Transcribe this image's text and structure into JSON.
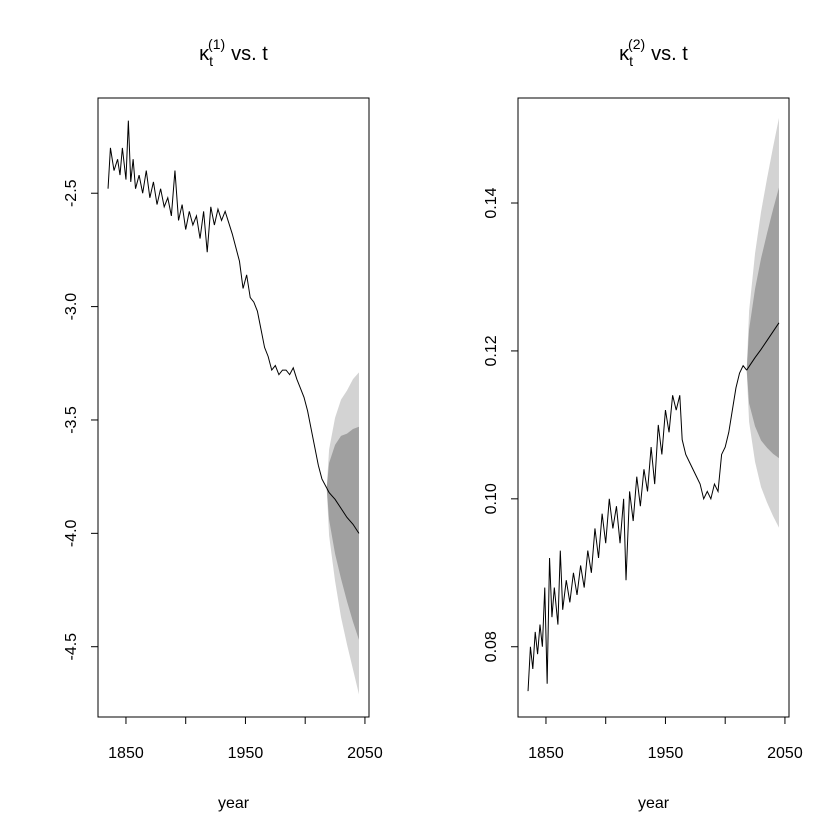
{
  "chart_data": [
    {
      "type": "line",
      "title": {
        "symbol": "κ",
        "sub": "t",
        "sup": "(1)",
        "rest": "vs. t"
      },
      "xlabel": "year",
      "xlim": [
        1826.6,
        2053.4
      ],
      "ylim": [
        -4.81,
        -2.08
      ],
      "xticks": [
        1850,
        {
          "value": 1900,
          "label": null
        },
        1950,
        {
          "value": 2000,
          "label": null
        },
        2050
      ],
      "yticks": [
        -4.5,
        {
          "value": -4,
          "label": "-4.0"
        },
        -3.5,
        {
          "value": -3,
          "label": "-3.0"
        },
        -2.5
      ],
      "color": "#000000",
      "x": [
        1835,
        1837,
        1840,
        1843,
        1845,
        1847,
        1850,
        1852,
        1854,
        1856,
        1858,
        1861,
        1864,
        1867,
        1870,
        1873,
        1876,
        1879,
        1882,
        1885,
        1888,
        1891,
        1894,
        1897,
        1900,
        1903,
        1906,
        1909,
        1912,
        1915,
        1918,
        1921,
        1924,
        1927,
        1930,
        1933,
        1936,
        1939,
        1942,
        1945,
        1948,
        1951,
        1954,
        1957,
        1960,
        1963,
        1966,
        1969,
        1972,
        1975,
        1978,
        1981,
        1984,
        1987,
        1990,
        1993,
        1996,
        1999,
        2002,
        2005,
        2008,
        2011,
        2014,
        2018
      ],
      "values": [
        -2.48,
        -2.3,
        -2.4,
        -2.35,
        -2.42,
        -2.3,
        -2.44,
        -2.18,
        -2.45,
        -2.35,
        -2.48,
        -2.42,
        -2.5,
        -2.4,
        -2.52,
        -2.45,
        -2.55,
        -2.48,
        -2.56,
        -2.52,
        -2.6,
        -2.4,
        -2.62,
        -2.55,
        -2.66,
        -2.58,
        -2.64,
        -2.6,
        -2.7,
        -2.58,
        -2.76,
        -2.56,
        -2.64,
        -2.57,
        -2.62,
        -2.58,
        -2.63,
        -2.68,
        -2.74,
        -2.8,
        -2.92,
        -2.86,
        -2.96,
        -2.98,
        -3.02,
        -3.1,
        -3.18,
        -3.22,
        -3.28,
        -3.26,
        -3.3,
        -3.28,
        -3.28,
        -3.3,
        -3.27,
        -3.32,
        -3.36,
        -3.4,
        -3.46,
        -3.54,
        -3.62,
        -3.7,
        -3.76,
        -3.8
      ],
      "forecast": {
        "x": [
          2018,
          2020,
          2025,
          2030,
          2035,
          2040,
          2045
        ],
        "values": [
          -3.8,
          -3.82,
          -3.85,
          -3.89,
          -3.93,
          -3.96,
          -4.0
        ],
        "color": "#000000",
        "bands": [
          {
            "color": "#d3d3d3",
            "upper": [
              -3.8,
              -3.63,
              -3.49,
              -3.41,
              -3.37,
              -3.32,
              -3.29
            ],
            "lower": [
              -3.8,
              -4.01,
              -4.21,
              -4.37,
              -4.49,
              -4.6,
              -4.71
            ]
          },
          {
            "color": "#a0a0a0",
            "upper": [
              -3.8,
              -3.69,
              -3.61,
              -3.57,
              -3.56,
              -3.54,
              -3.53
            ],
            "lower": [
              -3.8,
              -3.94,
              -4.09,
              -4.2,
              -4.3,
              -4.39,
              -4.47
            ]
          }
        ]
      }
    },
    {
      "type": "line",
      "title": {
        "symbol": "κ",
        "sub": "t",
        "sup": "(2)",
        "rest": "vs. t"
      },
      "xlabel": "year",
      "xlim": [
        1826.6,
        2053.4
      ],
      "ylim": [
        0.0705,
        0.1542
      ],
      "xticks": [
        1850,
        {
          "value": 1900,
          "label": null
        },
        1950,
        {
          "value": 2000,
          "label": null
        },
        2050
      ],
      "yticks": [
        0.08,
        {
          "value": 0.1,
          "label": "0.10"
        },
        0.12,
        0.14
      ],
      "color": "#000000",
      "x": [
        1835,
        1837,
        1839,
        1841,
        1843,
        1845,
        1847,
        1849,
        1851,
        1853,
        1855,
        1857,
        1860,
        1862,
        1864,
        1867,
        1870,
        1873,
        1876,
        1879,
        1882,
        1885,
        1888,
        1891,
        1894,
        1897,
        1900,
        1903,
        1906,
        1909,
        1912,
        1915,
        1917,
        1920,
        1923,
        1926,
        1929,
        1932,
        1935,
        1938,
        1941,
        1944,
        1947,
        1950,
        1953,
        1956,
        1959,
        1962,
        1964,
        1967,
        1970,
        1973,
        1976,
        1979,
        1982,
        1985,
        1988,
        1991,
        1994,
        1997,
        2000,
        2003,
        2006,
        2009,
        2012,
        2015,
        2018
      ],
      "values": [
        0.074,
        0.08,
        0.077,
        0.082,
        0.079,
        0.083,
        0.08,
        0.088,
        0.075,
        0.092,
        0.084,
        0.088,
        0.083,
        0.093,
        0.085,
        0.089,
        0.086,
        0.09,
        0.087,
        0.091,
        0.088,
        0.093,
        0.09,
        0.096,
        0.092,
        0.098,
        0.094,
        0.1,
        0.096,
        0.099,
        0.094,
        0.1,
        0.089,
        0.101,
        0.097,
        0.103,
        0.099,
        0.104,
        0.101,
        0.107,
        0.102,
        0.11,
        0.106,
        0.112,
        0.109,
        0.114,
        0.112,
        0.114,
        0.108,
        0.106,
        0.105,
        0.104,
        0.103,
        0.102,
        0.1,
        0.101,
        0.1,
        0.102,
        0.101,
        0.106,
        0.107,
        0.109,
        0.112,
        0.115,
        0.117,
        0.118,
        0.1174
      ],
      "forecast": {
        "x": [
          2018,
          2020,
          2025,
          2030,
          2035,
          2040,
          2045
        ],
        "values": [
          0.1174,
          0.1179,
          0.1191,
          0.1202,
          0.1214,
          0.1226,
          0.1238
        ],
        "color": "#000000",
        "bands": [
          {
            "color": "#d3d3d3",
            "upper": [
              0.1174,
              0.1254,
              0.1332,
              0.1388,
              0.1433,
              0.1475,
              0.1515
            ],
            "lower": [
              0.1174,
              0.1104,
              0.105,
              0.1016,
              0.0995,
              0.0977,
              0.0961
            ]
          },
          {
            "color": "#a0a0a0",
            "upper": [
              0.1174,
              0.1229,
              0.1284,
              0.1325,
              0.1359,
              0.1391,
              0.1421
            ],
            "lower": [
              0.1174,
              0.1129,
              0.1098,
              0.1079,
              0.1069,
              0.1061,
              0.1055
            ]
          }
        ]
      }
    }
  ]
}
